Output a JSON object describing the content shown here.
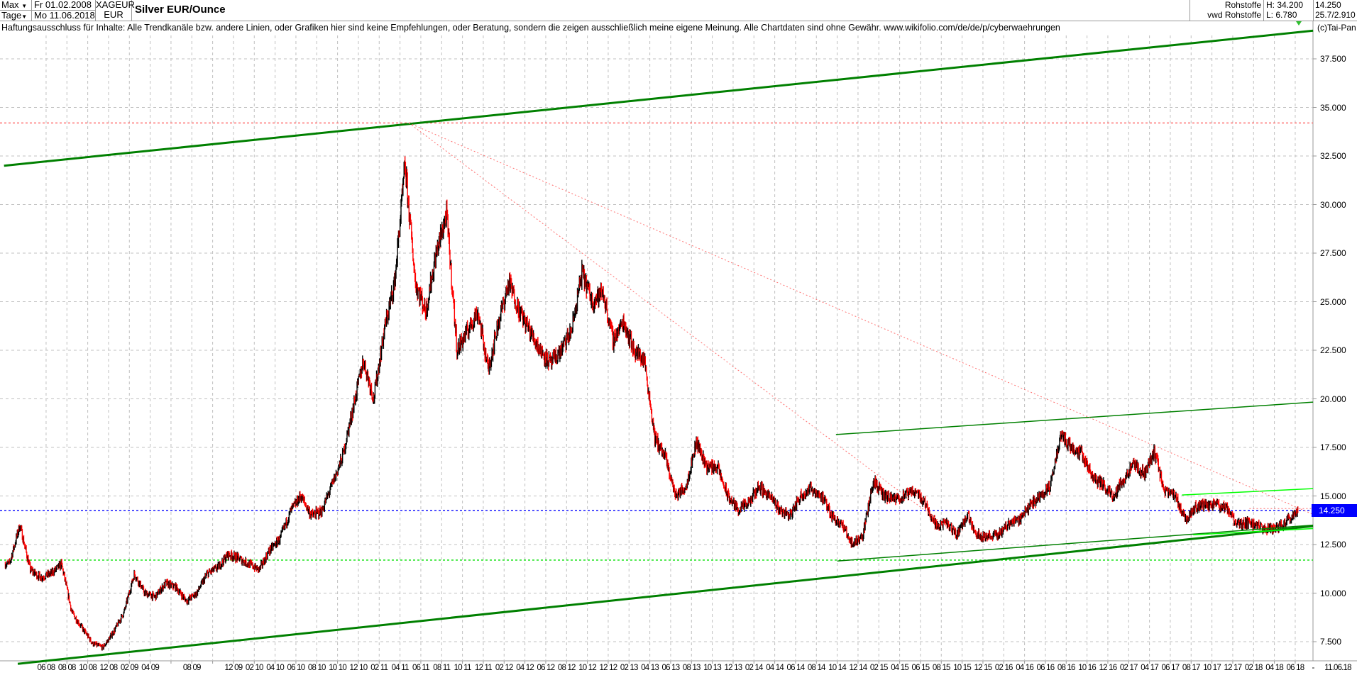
{
  "header": {
    "range_select": "Max",
    "interval_select": "Tage",
    "start_date": "Fr 01.02.2008",
    "end_date": "Mo 11.06.2018",
    "symbol": "XAGEUR",
    "currency": "EUR",
    "title": "Silver EUR/Ounce",
    "category": "Rohstoffe",
    "source": "vwd Rohstoffe",
    "high": "H: 34.200",
    "low": "L: 6.780",
    "last": "14.250",
    "change": "25.7/2.910",
    "copyright": "(c)Tai-Pan"
  },
  "disclaimer": "Haftungsausschluss für Inhalte: Alle Trendkanäle bzw. andere Linien, oder Grafiken hier sind keine Empfehlungen, oder Beratung, sondern die zeigen ausschließlich meine eigene Meinung. Alle Chartdaten sind ohne Gewähr.  www.wikifolio.com/de/de/p/cyberwaehrungen",
  "chart_data": {
    "type": "candlestick",
    "title": "Silver EUR/Ounce",
    "ylim": [
      6.5,
      39.5
    ],
    "grid": true,
    "y_ticks": [
      "37.500",
      "35.000",
      "32.500",
      "30.000",
      "27.500",
      "25.000",
      "22.500",
      "20.000",
      "17.500",
      "15.000",
      "12.500",
      "10.000",
      "7.500"
    ],
    "y_tick_values": [
      37.5,
      35,
      32.5,
      30,
      27.5,
      25,
      22.5,
      20,
      17.5,
      15,
      12.5,
      10,
      7.5
    ],
    "last_price_label": "14.250",
    "last_price": 14.25,
    "x_range": [
      "2008-02-01",
      "2018-06-11"
    ],
    "x_ticks": [
      "06 08",
      "08 08",
      "10 08",
      "12 08",
      "02 09",
      "04 09",
      "",
      "08 09",
      "",
      "12 09",
      "02 10",
      "04 10",
      "06 10",
      "08 10",
      "10 10",
      "12 10",
      "02 11",
      "04 11",
      "06 11",
      "08 11",
      "10 11",
      "12 11",
      "02 12",
      "04 12",
      "06 12",
      "08 12",
      "10 12",
      "12 12",
      "02 13",
      "04 13",
      "06 13",
      "08 13",
      "10 13",
      "12 13",
      "02 14",
      "04 14",
      "06 14",
      "08 14",
      "10 14",
      "12 14",
      "02 15",
      "04 15",
      "06 15",
      "08 15",
      "10 15",
      "12 15",
      "02 16",
      "04 16",
      "06 16",
      "08 16",
      "10 16",
      "12 16",
      "02 17",
      "04 17",
      "06 17",
      "08 17",
      "10 17",
      "12 17",
      "02 18",
      "04 18",
      "06 18"
    ],
    "x_end_labels": [
      "-",
      "11.06.18"
    ],
    "monthly_approx_close": [
      [
        "2008-02",
        11.5
      ],
      [
        "2008-03",
        13.5
      ],
      [
        "2008-04",
        11.2
      ],
      [
        "2008-05",
        10.8
      ],
      [
        "2008-06",
        11.0
      ],
      [
        "2008-07",
        11.5
      ],
      [
        "2008-08",
        9.0
      ],
      [
        "2008-09",
        8.2
      ],
      [
        "2008-10",
        7.4
      ],
      [
        "2008-11",
        7.2
      ],
      [
        "2008-12",
        8.0
      ],
      [
        "2009-01",
        9.0
      ],
      [
        "2009-02",
        11.0
      ],
      [
        "2009-03",
        10.0
      ],
      [
        "2009-04",
        9.8
      ],
      [
        "2009-05",
        10.5
      ],
      [
        "2009-06",
        10.3
      ],
      [
        "2009-07",
        9.6
      ],
      [
        "2009-08",
        10.0
      ],
      [
        "2009-09",
        11.0
      ],
      [
        "2009-10",
        11.3
      ],
      [
        "2009-11",
        12.0
      ],
      [
        "2009-12",
        11.8
      ],
      [
        "2010-01",
        11.5
      ],
      [
        "2010-02",
        11.2
      ],
      [
        "2010-03",
        12.2
      ],
      [
        "2010-04",
        12.8
      ],
      [
        "2010-05",
        14.2
      ],
      [
        "2010-06",
        15.0
      ],
      [
        "2010-07",
        14.0
      ],
      [
        "2010-08",
        14.2
      ],
      [
        "2010-09",
        15.6
      ],
      [
        "2010-10",
        17.0
      ],
      [
        "2010-11",
        19.5
      ],
      [
        "2010-12",
        22.0
      ],
      [
        "2011-01",
        20.0
      ],
      [
        "2011-02",
        23.5
      ],
      [
        "2011-03",
        26.0
      ],
      [
        "2011-04",
        32.0
      ],
      [
        "2011-05",
        26.0
      ],
      [
        "2011-06",
        24.5
      ],
      [
        "2011-07",
        27.5
      ],
      [
        "2011-08",
        29.5
      ],
      [
        "2011-09",
        22.5
      ],
      [
        "2011-10",
        23.5
      ],
      [
        "2011-11",
        24.5
      ],
      [
        "2011-12",
        21.5
      ],
      [
        "2012-01",
        24.0
      ],
      [
        "2012-02",
        26.0
      ],
      [
        "2012-03",
        24.5
      ],
      [
        "2012-04",
        23.5
      ],
      [
        "2012-05",
        22.5
      ],
      [
        "2012-06",
        21.8
      ],
      [
        "2012-07",
        22.5
      ],
      [
        "2012-08",
        23.5
      ],
      [
        "2012-09",
        26.5
      ],
      [
        "2012-10",
        25.0
      ],
      [
        "2012-11",
        25.5
      ],
      [
        "2012-12",
        23.0
      ],
      [
        "2013-01",
        24.0
      ],
      [
        "2013-02",
        22.5
      ],
      [
        "2013-03",
        22.0
      ],
      [
        "2013-04",
        18.0
      ],
      [
        "2013-05",
        17.0
      ],
      [
        "2013-06",
        15.0
      ],
      [
        "2013-07",
        15.5
      ],
      [
        "2013-08",
        17.8
      ],
      [
        "2013-09",
        16.5
      ],
      [
        "2013-10",
        16.5
      ],
      [
        "2013-11",
        15.0
      ],
      [
        "2013-12",
        14.3
      ],
      [
        "2014-01",
        14.6
      ],
      [
        "2014-02",
        15.5
      ],
      [
        "2014-03",
        15.0
      ],
      [
        "2014-04",
        14.3
      ],
      [
        "2014-05",
        14.0
      ],
      [
        "2014-06",
        15.0
      ],
      [
        "2014-07",
        15.4
      ],
      [
        "2014-08",
        15.0
      ],
      [
        "2014-09",
        14.0
      ],
      [
        "2014-10",
        13.5
      ],
      [
        "2014-11",
        12.5
      ],
      [
        "2014-12",
        13.0
      ],
      [
        "2015-01",
        15.8
      ],
      [
        "2015-02",
        15.0
      ],
      [
        "2015-03",
        14.8
      ],
      [
        "2015-04",
        15.0
      ],
      [
        "2015-05",
        15.3
      ],
      [
        "2015-06",
        14.6
      ],
      [
        "2015-07",
        13.5
      ],
      [
        "2015-08",
        13.6
      ],
      [
        "2015-09",
        13.0
      ],
      [
        "2015-10",
        14.0
      ],
      [
        "2015-11",
        13.0
      ],
      [
        "2015-12",
        12.9
      ],
      [
        "2016-01",
        13.0
      ],
      [
        "2016-02",
        13.6
      ],
      [
        "2016-03",
        13.8
      ],
      [
        "2016-04",
        14.5
      ],
      [
        "2016-05",
        15.0
      ],
      [
        "2016-06",
        15.5
      ],
      [
        "2016-07",
        18.2
      ],
      [
        "2016-08",
        17.5
      ],
      [
        "2016-09",
        17.2
      ],
      [
        "2016-10",
        16.0
      ],
      [
        "2016-11",
        15.6
      ],
      [
        "2016-12",
        15.0
      ],
      [
        "2017-01",
        15.8
      ],
      [
        "2017-02",
        16.6
      ],
      [
        "2017-03",
        16.1
      ],
      [
        "2017-04",
        17.3
      ],
      [
        "2017-05",
        15.2
      ],
      [
        "2017-06",
        15.0
      ],
      [
        "2017-07",
        13.8
      ],
      [
        "2017-08",
        14.5
      ],
      [
        "2017-09",
        14.5
      ],
      [
        "2017-10",
        14.6
      ],
      [
        "2017-11",
        14.3
      ],
      [
        "2017-12",
        13.5
      ],
      [
        "2018-01",
        13.6
      ],
      [
        "2018-02",
        13.4
      ],
      [
        "2018-03",
        13.3
      ],
      [
        "2018-04",
        13.4
      ],
      [
        "2018-05",
        13.9
      ],
      [
        "2018-06",
        14.25
      ]
    ],
    "trend_lines": [
      {
        "kind": "upper-channel",
        "color": "#008000",
        "style": "thick",
        "from": [
          2008.08,
          32.0
        ],
        "to": [
          2018.56,
          38.95
        ]
      },
      {
        "kind": "lower-channel",
        "color": "#008000",
        "style": "thick",
        "from": [
          2008.19,
          6.36
        ],
        "to": [
          2018.56,
          13.45
        ]
      },
      {
        "kind": "upper-small-channel",
        "color": "#008000",
        "style": "thin",
        "from": [
          2014.74,
          18.16
        ],
        "to": [
          2018.56,
          19.83
        ]
      },
      {
        "kind": "lower-small-channel",
        "color": "#008000",
        "style": "thin",
        "from": [
          2014.75,
          11.65
        ],
        "to": [
          2018.56,
          13.5
        ]
      },
      {
        "kind": "upper-triangle",
        "color": "#00ff00",
        "style": "thin",
        "from": [
          2017.51,
          15.05
        ],
        "to": [
          2018.56,
          15.38
        ]
      },
      {
        "kind": "lower-triangle",
        "color": "#00ff00",
        "style": "thin",
        "from": [
          2017.6,
          13.0
        ],
        "to": [
          2018.56,
          13.32
        ]
      },
      {
        "kind": "downtrend-long",
        "color": "#ff7070",
        "style": "dotted",
        "from": [
          2011.32,
          34.2
        ],
        "to": [
          2018.56,
          14.05
        ]
      },
      {
        "kind": "downtrend-short",
        "color": "#ff7070",
        "style": "dotted",
        "from": [
          2011.32,
          34.2
        ],
        "to": [
          2015.63,
          13.4
        ]
      },
      {
        "kind": "resistance-short",
        "color": "#ff7070",
        "style": "dotted",
        "from": [
          2018.05,
          14.35
        ],
        "to": [
          2018.56,
          14.35
        ]
      }
    ],
    "horizontal_lines": [
      {
        "value": 34.2,
        "color": "#ff6060",
        "style": "dotted"
      },
      {
        "value": 14.25,
        "color": "#0000ff",
        "style": "dotted"
      },
      {
        "value": 11.7,
        "color": "#00e000",
        "style": "dotted"
      }
    ],
    "colors": {
      "up": "#000000",
      "down": "#ff0000",
      "grid": "#c0c0c0",
      "last_badge": "#0000ff"
    }
  }
}
